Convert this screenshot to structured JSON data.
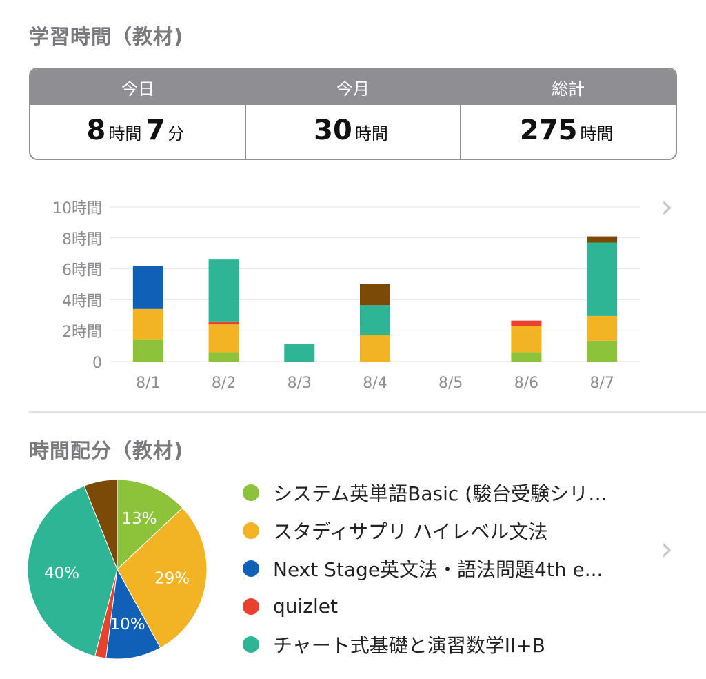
{
  "section1_title": "学習時間（教材)",
  "summary": {
    "headers": [
      "今日",
      "今月",
      "総計"
    ],
    "today": {
      "h": "8",
      "h_unit": "時間",
      "m": "7",
      "m_unit": "分"
    },
    "month": {
      "h": "30",
      "h_unit": "時間"
    },
    "total": {
      "h": "275",
      "h_unit": "時間"
    }
  },
  "section2_title": "時間配分（教材)",
  "colors": {
    "green": "#8cc33a",
    "yellow": "#f2b425",
    "blue": "#1060b8",
    "red": "#e8412c",
    "teal": "#2db596",
    "brown": "#7a4a06",
    "header_gray": "#8e8e93"
  },
  "icons": {
    "chevron": "chevron-right-icon"
  },
  "legend": [
    {
      "label": "システム英単語Basic (駿台受験シリ…",
      "color": "#8cc33a"
    },
    {
      "label": "スタディサプリ ハイレベル文法",
      "color": "#f2b425"
    },
    {
      "label": "Next Stage英文法・語法問題4th e...",
      "color": "#1060b8"
    },
    {
      "label": "quizlet",
      "color": "#e8412c"
    },
    {
      "label": "チャート式基礎と演習数学II+B",
      "color": "#2db596"
    }
  ],
  "chart_data": [
    {
      "type": "bar",
      "stacked": true,
      "categories": [
        "8/1",
        "8/2",
        "8/3",
        "8/4",
        "8/5",
        "8/6",
        "8/7"
      ],
      "yticks": [
        "0",
        "2時間",
        "4時間",
        "6時間",
        "8時間",
        "10時間"
      ],
      "ylim": [
        0,
        10
      ],
      "grid": true,
      "series": [
        {
          "name": "システム英単語Basic (駿台受験シリ…",
          "color": "#8cc33a",
          "values": [
            1.4,
            0.6,
            0,
            0,
            0,
            0.6,
            1.35
          ]
        },
        {
          "name": "スタディサプリ ハイレベル文法",
          "color": "#f2b425",
          "values": [
            2.0,
            1.8,
            0,
            1.7,
            0,
            1.7,
            1.6
          ]
        },
        {
          "name": "Next Stage英文法・語法問題4th e...",
          "color": "#1060b8",
          "values": [
            2.8,
            0,
            0,
            0,
            0,
            0,
            0
          ]
        },
        {
          "name": "quizlet",
          "color": "#e8412c",
          "values": [
            0,
            0.2,
            0,
            0,
            0,
            0.35,
            0
          ]
        },
        {
          "name": "チャート式基礎と演習数学II+B",
          "color": "#2db596",
          "values": [
            0,
            4.0,
            1.15,
            1.95,
            0,
            0,
            4.75
          ]
        },
        {
          "color": "#7a4a06",
          "values": [
            0,
            0,
            0,
            1.35,
            0,
            0,
            0.4
          ]
        }
      ]
    },
    {
      "type": "pie",
      "slices": [
        {
          "value": 13,
          "label": "13%",
          "color": "#8cc33a"
        },
        {
          "value": 29,
          "label": "29%",
          "color": "#f2b425"
        },
        {
          "value": 10,
          "label": "10%",
          "color": "#1060b8"
        },
        {
          "value": 2,
          "label": "",
          "color": "#e8412c"
        },
        {
          "value": 40,
          "label": "40%",
          "color": "#2db596"
        },
        {
          "value": 6,
          "label": "",
          "color": "#7a4a06"
        }
      ]
    }
  ]
}
